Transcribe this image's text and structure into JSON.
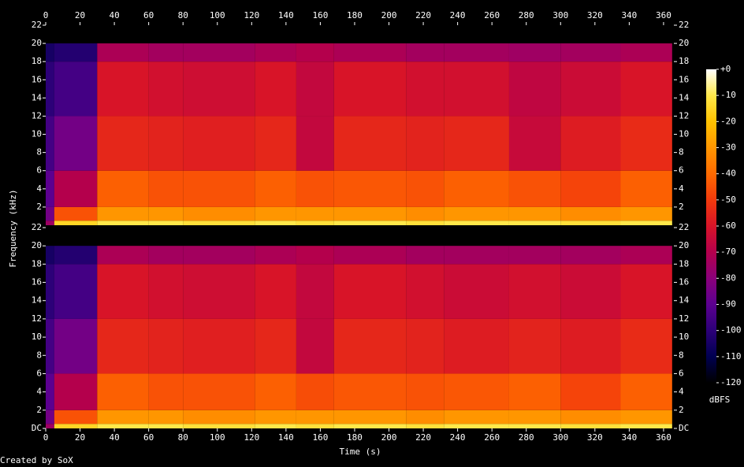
{
  "chart_data": {
    "type": "heatmap",
    "x_label": "Time (s)",
    "y_label": "Frequency (kHz)",
    "credit": "Created by SoX",
    "xlim": [
      0,
      366
    ],
    "ylim": [
      0,
      22
    ],
    "xticks": [
      0,
      20,
      40,
      60,
      80,
      100,
      120,
      140,
      160,
      180,
      200,
      220,
      240,
      260,
      280,
      300,
      320,
      340,
      360
    ],
    "x": [
      0,
      5,
      30,
      60,
      80,
      122,
      146,
      168,
      210,
      232,
      270,
      300,
      335,
      365
    ],
    "y": [
      0,
      0.5,
      2,
      6,
      12,
      18,
      20
    ],
    "panels": [
      {
        "yticks": [
          2,
          4,
          6,
          8,
          10,
          12,
          14,
          16,
          18,
          20,
          22
        ],
        "values": [
          [
            -75,
            -15,
            -10,
            -10,
            -12,
            -10,
            -12,
            -10,
            -12,
            -10,
            -10,
            -12,
            -10
          ],
          [
            -85,
            -45,
            -30,
            -30,
            -32,
            -30,
            -30,
            -30,
            -32,
            -30,
            -30,
            -32,
            -30
          ],
          [
            -90,
            -70,
            -42,
            -45,
            -45,
            -42,
            -45,
            -44,
            -45,
            -42,
            -45,
            -48,
            -42
          ],
          [
            -95,
            -85,
            -55,
            -56,
            -57,
            -55,
            -66,
            -55,
            -56,
            -55,
            -65,
            -58,
            -54
          ],
          [
            -100,
            -95,
            -60,
            -62,
            -63,
            -60,
            -66,
            -60,
            -62,
            -62,
            -67,
            -64,
            -60
          ],
          [
            -105,
            -102,
            -72,
            -74,
            -74,
            -72,
            -70,
            -72,
            -74,
            -74,
            -75,
            -74,
            -72
          ]
        ]
      },
      {
        "yticks": [
          {
            "value": 0,
            "label": "DC"
          },
          2,
          4,
          6,
          8,
          10,
          12,
          14,
          16,
          18,
          20,
          22
        ],
        "values": [
          [
            -75,
            -15,
            -10,
            -10,
            -12,
            -10,
            -12,
            -10,
            -12,
            -10,
            -10,
            -12,
            -10
          ],
          [
            -85,
            -45,
            -30,
            -30,
            -32,
            -30,
            -30,
            -30,
            -32,
            -30,
            -30,
            -32,
            -30
          ],
          [
            -90,
            -70,
            -42,
            -45,
            -45,
            -42,
            -46,
            -44,
            -45,
            -44,
            -42,
            -48,
            -42
          ],
          [
            -95,
            -85,
            -55,
            -56,
            -57,
            -55,
            -66,
            -55,
            -56,
            -58,
            -56,
            -58,
            -54
          ],
          [
            -100,
            -95,
            -60,
            -62,
            -63,
            -60,
            -66,
            -60,
            -62,
            -64,
            -62,
            -64,
            -60
          ],
          [
            -105,
            -102,
            -72,
            -74,
            -74,
            -72,
            -70,
            -72,
            -74,
            -74,
            -74,
            -74,
            -72
          ]
        ]
      }
    ],
    "colorbar": {
      "label": "dBFS",
      "zlim": [
        -120,
        0
      ],
      "ticks": [
        {
          "value": 0,
          "label": "+0"
        },
        -10,
        -20,
        -30,
        -40,
        -50,
        -60,
        -70,
        -80,
        -90,
        -100,
        -110,
        -120
      ],
      "colorscale": [
        "#000000",
        "#000050",
        "#2c0078",
        "#5c0090",
        "#8a007a",
        "#b4004c",
        "#d81428",
        "#f23a0c",
        "#ff6a00",
        "#ff9600",
        "#ffc200",
        "#ffe84a",
        "#ffffff"
      ]
    }
  }
}
